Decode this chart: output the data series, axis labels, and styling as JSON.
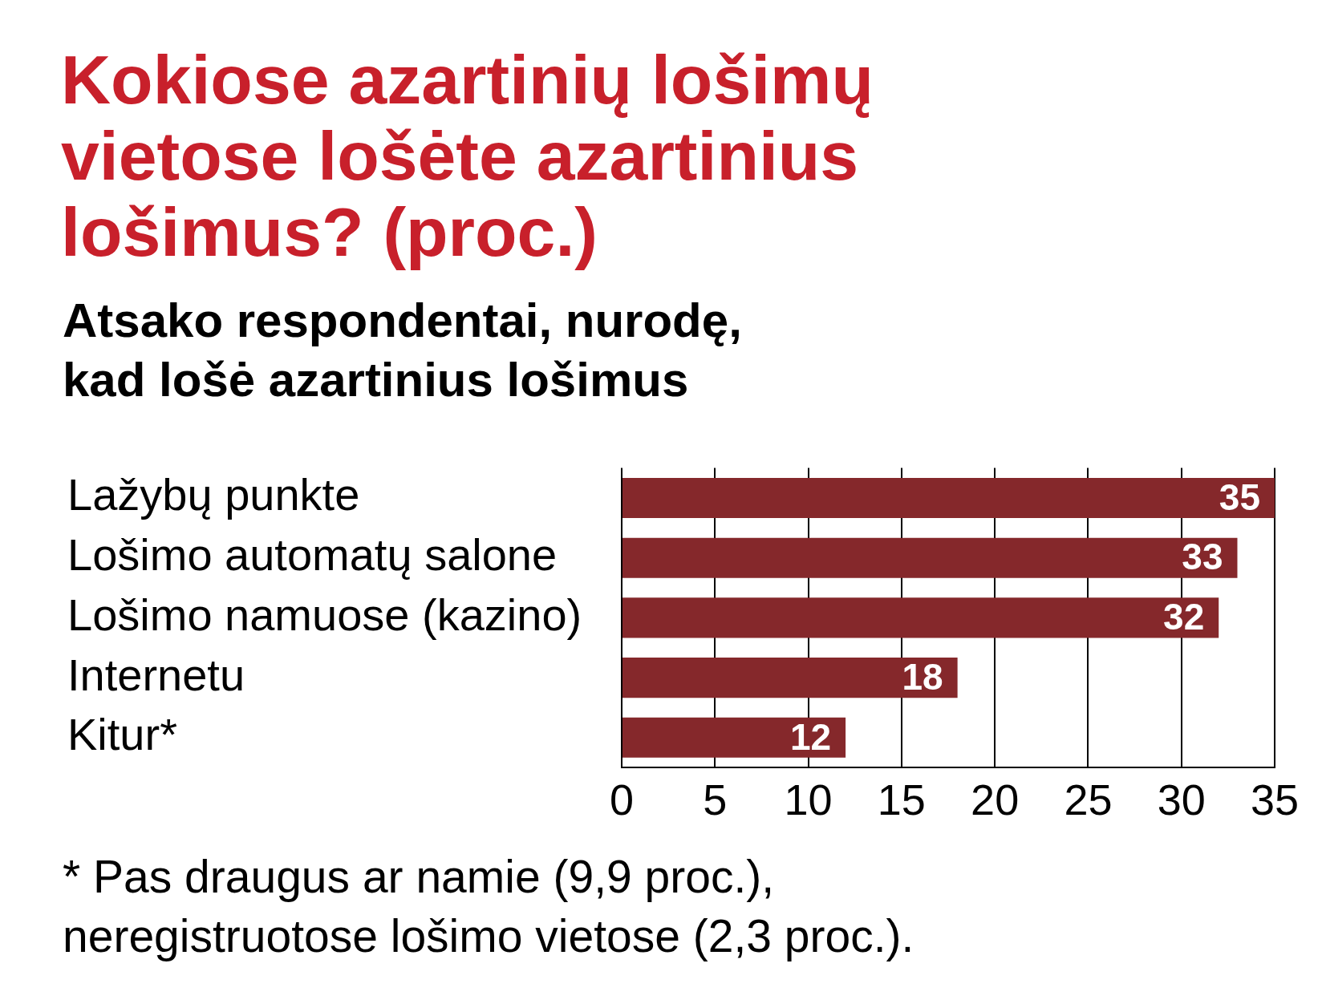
{
  "chart_data": {
    "type": "bar",
    "orientation": "horizontal",
    "title": "Kokiose azartinių lošimų vietose lošėte azartinius lošimus? (proc.)",
    "subtitle": "Atsako respondentai, nurodę, kad lošė azartinius lošimus",
    "categories": [
      "Lažybų punkte",
      "Lošimo automatų salone",
      "Lošimo namuose (kazino)",
      "Internetu",
      "Kitur*"
    ],
    "values": [
      35,
      33,
      32,
      18,
      12
    ],
    "color": "#85282b",
    "xlim": [
      0,
      35
    ],
    "xticks": [
      0,
      5,
      10,
      15,
      20,
      25,
      30,
      35
    ],
    "grid": "x",
    "data_labels": true,
    "annotations": [
      "* Pas draugus ar namie (9,9 proc.), neregistruotose lošimo vietose (2,3 proc.)."
    ]
  }
}
